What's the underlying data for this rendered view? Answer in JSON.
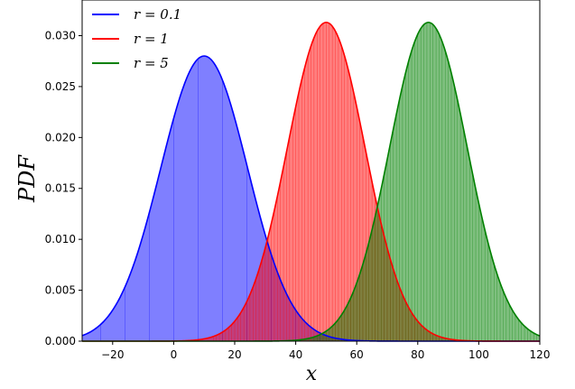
{
  "chart_data": {
    "type": "area",
    "xlabel": "x",
    "ylabel": "PDF",
    "xlim": [
      -30,
      120
    ],
    "ylim": [
      0,
      0.0335
    ],
    "xticks": [
      -20,
      0,
      20,
      40,
      60,
      80,
      100,
      120
    ],
    "yticks": [
      0.0,
      0.005,
      0.01,
      0.015,
      0.02,
      0.025,
      0.03
    ],
    "xtick_labels": [
      "−20",
      "0",
      "20",
      "40",
      "60",
      "80",
      "100",
      "120"
    ],
    "ytick_labels": [
      "0.000",
      "0.005",
      "0.010",
      "0.015",
      "0.020",
      "0.025",
      "0.030"
    ],
    "legend_position": "top-left",
    "series": [
      {
        "name": "r = 0.1",
        "label_var": "r",
        "label_val": "0.1",
        "mean": 10,
        "peak": 0.028,
        "color": "#0000ff",
        "fill": "#6a6aff",
        "hist_bin_width": 8
      },
      {
        "name": "r = 1",
        "label_var": "r",
        "label_val": "1",
        "mean": 50,
        "peak": 0.0313,
        "color": "#ff0000",
        "fill": "#ff6b6b",
        "hist_bin_width": 1
      },
      {
        "name": "r = 5",
        "label_var": "r",
        "label_val": "5",
        "mean": 83.5,
        "peak": 0.0313,
        "color": "#008000",
        "fill": "#5fb95f",
        "hist_bin_width": 1
      }
    ]
  }
}
